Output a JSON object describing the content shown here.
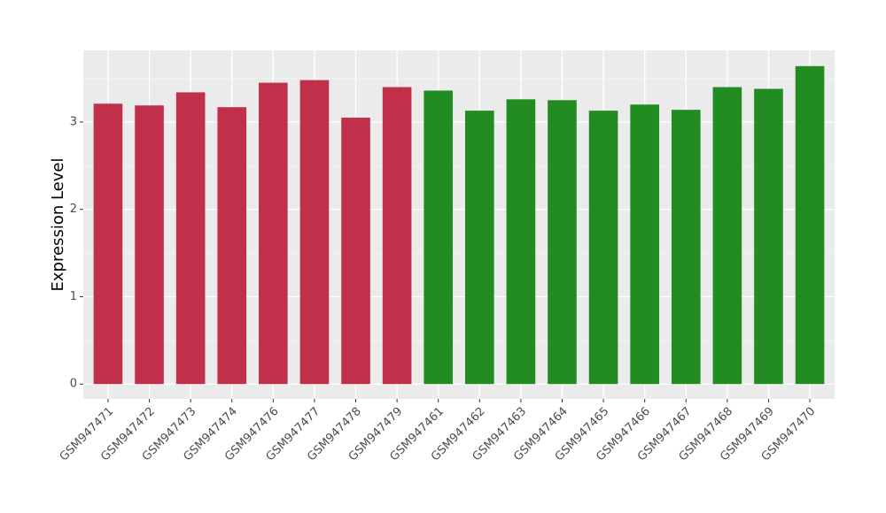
{
  "chart_data": {
    "type": "bar",
    "y_label": "Expression Level",
    "categories": [
      "GSM947471",
      "GSM947472",
      "GSM947473",
      "GSM947474",
      "GSM947476",
      "GSM947477",
      "GSM947478",
      "GSM947479",
      "GSM947461",
      "GSM947462",
      "GSM947463",
      "GSM947464",
      "GSM947465",
      "GSM947466",
      "GSM947467",
      "GSM947468",
      "GSM947469",
      "GSM947470"
    ],
    "values": [
      3.21,
      3.19,
      3.34,
      3.17,
      3.45,
      3.48,
      3.05,
      3.4,
      3.36,
      3.13,
      3.26,
      3.25,
      3.13,
      3.2,
      3.14,
      3.4,
      3.38,
      3.64
    ],
    "colors": [
      "#c1304a",
      "#c1304a",
      "#c1304a",
      "#c1304a",
      "#c1304a",
      "#c1304a",
      "#c1304a",
      "#c1304a",
      "#228b22",
      "#228b22",
      "#228b22",
      "#228b22",
      "#228b22",
      "#228b22",
      "#228b22",
      "#228b22",
      "#228b22",
      "#228b22"
    ],
    "ylim": [
      -0.17,
      3.82
    ],
    "yticks": [
      0,
      1,
      2,
      3
    ],
    "grid": true
  }
}
